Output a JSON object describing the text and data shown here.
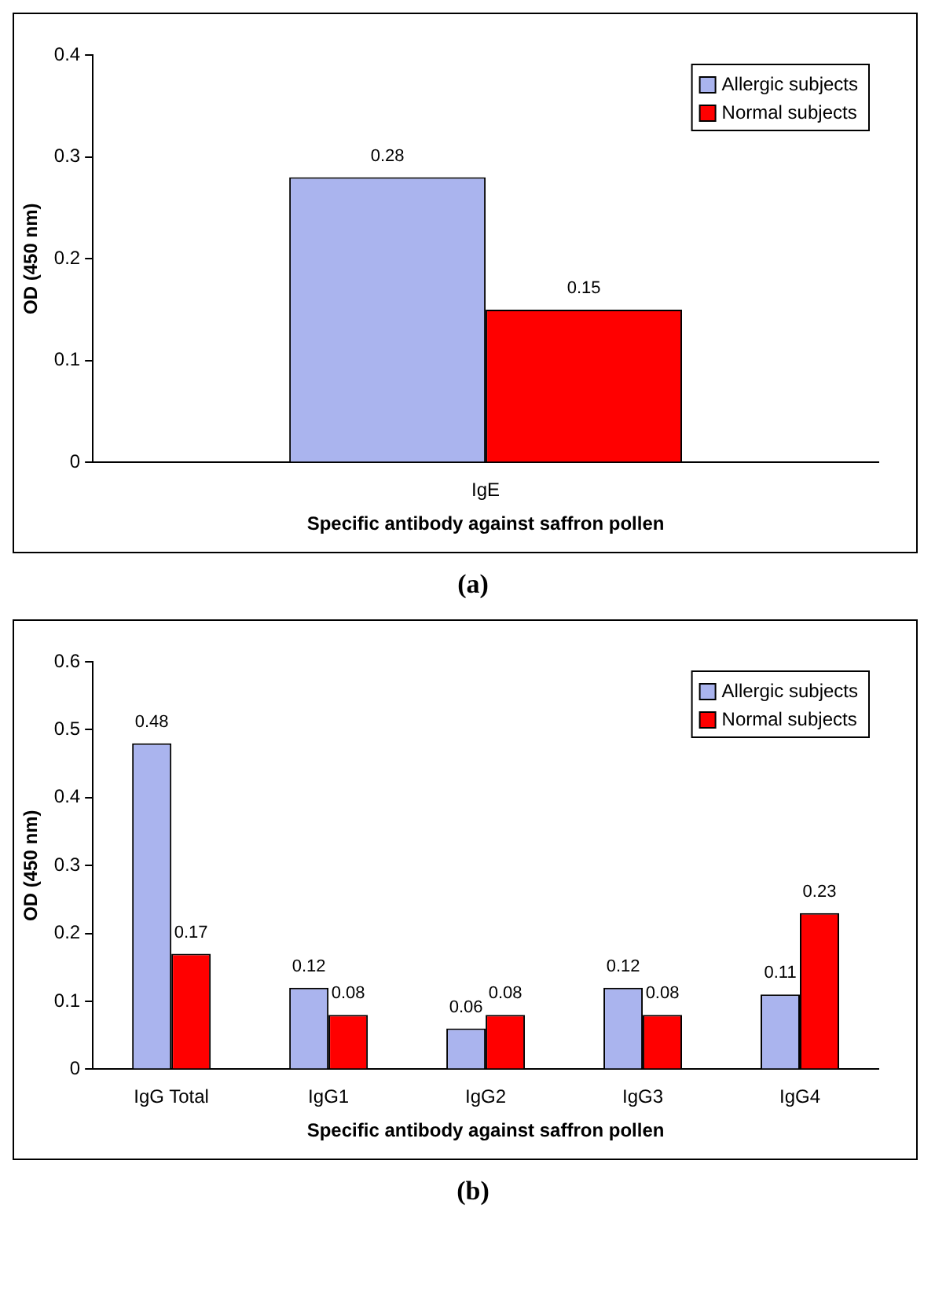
{
  "chart_data": [
    {
      "type": "bar",
      "xlabel": "Specific antibody against saffron pollen",
      "ylabel": "OD (450 nm)",
      "categories": [
        "IgE"
      ],
      "series": [
        {
          "name": "Allergic subjects",
          "color": "#aab4ee",
          "values": [
            0.28
          ]
        },
        {
          "name": "Normal subjects",
          "color": "#ff0000",
          "values": [
            0.15
          ]
        }
      ],
      "ylim": [
        0,
        0.4
      ],
      "yticks": [
        0,
        0.1,
        0.2,
        0.3,
        0.4
      ],
      "legend": "top right",
      "data_labels": true,
      "annotations": [
        "(a)"
      ]
    },
    {
      "type": "bar",
      "xlabel": "Specific antibody against saffron pollen",
      "ylabel": "OD (450 nm)",
      "categories": [
        "IgG Total",
        "IgG1",
        "IgG2",
        "IgG3",
        "IgG4"
      ],
      "series": [
        {
          "name": "Allergic subjects",
          "color": "#aab4ee",
          "values": [
            0.48,
            0.12,
            0.06,
            0.12,
            0.11
          ]
        },
        {
          "name": "Normal subjects",
          "color": "#ff0000",
          "values": [
            0.17,
            0.08,
            0.08,
            0.08,
            0.23
          ]
        }
      ],
      "ylim": [
        0,
        0.6
      ],
      "yticks": [
        0,
        0.1,
        0.2,
        0.3,
        0.4,
        0.5,
        0.6
      ],
      "legend": "top right",
      "data_labels": true,
      "annotations": [
        "(b)"
      ]
    }
  ]
}
